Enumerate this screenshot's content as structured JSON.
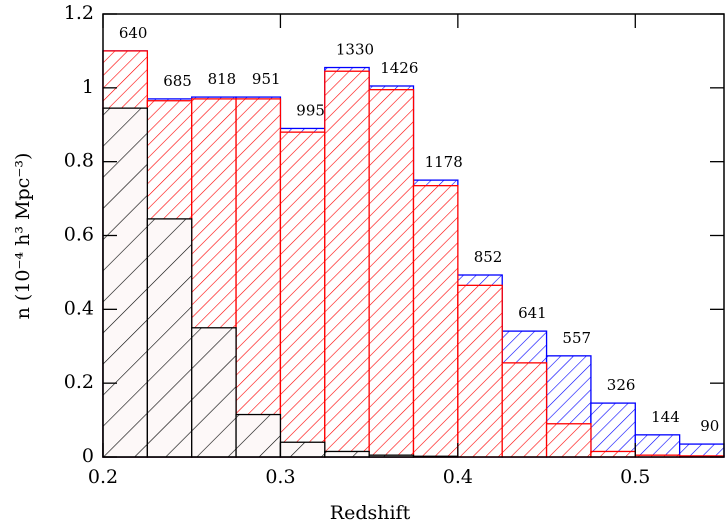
{
  "chart_data": {
    "type": "histogram",
    "x_label": "Redshift",
    "y_label": "n (10⁻⁴ h³ Mpc⁻³)",
    "bins": [
      0.2,
      0.225,
      0.25,
      0.275,
      0.3,
      0.325,
      0.35,
      0.375,
      0.4,
      0.425,
      0.45,
      0.475,
      0.5,
      0.525,
      0.55
    ],
    "series": [
      {
        "color": "#0000ff",
        "values": [
          1.1,
          0.97,
          0.975,
          0.975,
          0.89,
          1.055,
          1.005,
          0.75,
          0.493,
          0.341,
          0.274,
          0.146,
          0.06,
          0.035
        ]
      },
      {
        "color": "#ff0000",
        "values": [
          1.1,
          0.965,
          0.97,
          0.97,
          0.88,
          1.045,
          0.995,
          0.735,
          0.465,
          0.255,
          0.09,
          0.015,
          0.005,
          0.003
        ]
      },
      {
        "color": "#000000",
        "values": [
          0.945,
          0.645,
          0.35,
          0.115,
          0.04,
          0.015,
          0.005,
          0.002,
          0,
          0,
          0,
          0,
          0,
          0
        ]
      }
    ],
    "bin_counts": [
      640,
      685,
      818,
      951,
      995,
      1330,
      1426,
      1178,
      852,
      641,
      557,
      326,
      144,
      90
    ],
    "xlim": [
      0.2,
      0.55
    ],
    "ylim": [
      0,
      1.2
    ],
    "xticks": [
      0.2,
      0.3,
      0.4,
      0.5
    ],
    "yticks": [
      0,
      0.2,
      0.4,
      0.6,
      0.8,
      1,
      1.2
    ]
  }
}
